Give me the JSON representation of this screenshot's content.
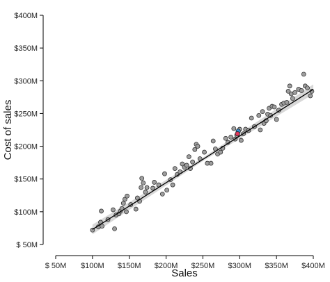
{
  "chart_data": {
    "type": "scatter",
    "xlabel": "Sales",
    "ylabel": "Cost of sales",
    "xlim": [
      50,
      400
    ],
    "ylim": [
      50,
      400
    ],
    "x_ticks": [
      {
        "value": 50,
        "label": "$ 50M"
      },
      {
        "value": 100,
        "label": "$100M"
      },
      {
        "value": 150,
        "label": "$150M"
      },
      {
        "value": 200,
        "label": "$200M"
      },
      {
        "value": 250,
        "label": "$250M"
      },
      {
        "value": 300,
        "label": "$300M"
      },
      {
        "value": 350,
        "label": "$350M"
      },
      {
        "value": 400,
        "label": "$400M"
      }
    ],
    "y_ticks": [
      {
        "value": 50,
        "label": "$ 50M"
      },
      {
        "value": 100,
        "label": "$100M"
      },
      {
        "value": 150,
        "label": "$150M"
      },
      {
        "value": 200,
        "label": "$200M"
      },
      {
        "value": 250,
        "label": "$250M"
      },
      {
        "value": 300,
        "label": "$300M"
      },
      {
        "value": 350,
        "label": "$350M"
      },
      {
        "value": 400,
        "label": "$400M"
      }
    ],
    "grid": false,
    "trend_line": {
      "x": [
        100,
        400
      ],
      "y": [
        73,
        287
      ],
      "confidence_band": true
    },
    "points": [
      {
        "x": 100,
        "y": 72
      },
      {
        "x": 108,
        "y": 77
      },
      {
        "x": 111,
        "y": 84
      },
      {
        "x": 113,
        "y": 78
      },
      {
        "x": 112,
        "y": 101
      },
      {
        "x": 121,
        "y": 88
      },
      {
        "x": 128,
        "y": 103
      },
      {
        "x": 130,
        "y": 74
      },
      {
        "x": 132,
        "y": 95
      },
      {
        "x": 136,
        "y": 97
      },
      {
        "x": 138,
        "y": 101
      },
      {
        "x": 140,
        "y": 105
      },
      {
        "x": 142,
        "y": 113
      },
      {
        "x": 144,
        "y": 119
      },
      {
        "x": 146,
        "y": 100
      },
      {
        "x": 147,
        "y": 124
      },
      {
        "x": 152,
        "y": 111
      },
      {
        "x": 159,
        "y": 104
      },
      {
        "x": 161,
        "y": 121
      },
      {
        "x": 164,
        "y": 116
      },
      {
        "x": 166,
        "y": 137
      },
      {
        "x": 167,
        "y": 151
      },
      {
        "x": 169,
        "y": 144
      },
      {
        "x": 172,
        "y": 130
      },
      {
        "x": 174,
        "y": 137
      },
      {
        "x": 182,
        "y": 136
      },
      {
        "x": 184,
        "y": 145
      },
      {
        "x": 190,
        "y": 141
      },
      {
        "x": 195,
        "y": 127
      },
      {
        "x": 198,
        "y": 158
      },
      {
        "x": 201,
        "y": 133
      },
      {
        "x": 206,
        "y": 149
      },
      {
        "x": 209,
        "y": 141
      },
      {
        "x": 212,
        "y": 166
      },
      {
        "x": 215,
        "y": 157
      },
      {
        "x": 219,
        "y": 161
      },
      {
        "x": 222,
        "y": 173
      },
      {
        "x": 225,
        "y": 168
      },
      {
        "x": 228,
        "y": 171
      },
      {
        "x": 231,
        "y": 184
      },
      {
        "x": 233,
        "y": 166
      },
      {
        "x": 236,
        "y": 176
      },
      {
        "x": 239,
        "y": 195
      },
      {
        "x": 241,
        "y": 203
      },
      {
        "x": 243,
        "y": 200
      },
      {
        "x": 246,
        "y": 181
      },
      {
        "x": 252,
        "y": 191
      },
      {
        "x": 256,
        "y": 174
      },
      {
        "x": 261,
        "y": 174
      },
      {
        "x": 264,
        "y": 208
      },
      {
        "x": 267,
        "y": 196
      },
      {
        "x": 270,
        "y": 188
      },
      {
        "x": 274,
        "y": 191
      },
      {
        "x": 277,
        "y": 197
      },
      {
        "x": 281,
        "y": 212
      },
      {
        "x": 284,
        "y": 206
      },
      {
        "x": 288,
        "y": 214
      },
      {
        "x": 292,
        "y": 227
      },
      {
        "x": 294,
        "y": 211
      },
      {
        "x": 296,
        "y": 217
      },
      {
        "x": 300,
        "y": 226
      },
      {
        "x": 302,
        "y": 209
      },
      {
        "x": 305,
        "y": 219
      },
      {
        "x": 308,
        "y": 226
      },
      {
        "x": 312,
        "y": 224
      },
      {
        "x": 316,
        "y": 243
      },
      {
        "x": 320,
        "y": 230
      },
      {
        "x": 326,
        "y": 247
      },
      {
        "x": 328,
        "y": 225
      },
      {
        "x": 331,
        "y": 253
      },
      {
        "x": 333,
        "y": 235
      },
      {
        "x": 336,
        "y": 239
      },
      {
        "x": 338,
        "y": 249
      },
      {
        "x": 340,
        "y": 258
      },
      {
        "x": 342,
        "y": 247
      },
      {
        "x": 344,
        "y": 261
      },
      {
        "x": 347,
        "y": 260
      },
      {
        "x": 350,
        "y": 241
      },
      {
        "x": 353,
        "y": 255
      },
      {
        "x": 357,
        "y": 264
      },
      {
        "x": 360,
        "y": 266
      },
      {
        "x": 364,
        "y": 267
      },
      {
        "x": 366,
        "y": 284
      },
      {
        "x": 368,
        "y": 292
      },
      {
        "x": 370,
        "y": 280
      },
      {
        "x": 372,
        "y": 273
      },
      {
        "x": 375,
        "y": 282
      },
      {
        "x": 380,
        "y": 287
      },
      {
        "x": 384,
        "y": 285
      },
      {
        "x": 387,
        "y": 310
      },
      {
        "x": 389,
        "y": 292
      },
      {
        "x": 392,
        "y": 289
      },
      {
        "x": 396,
        "y": 277
      },
      {
        "x": 398,
        "y": 284
      }
    ],
    "highlights": [
      {
        "x": 298,
        "y": 223,
        "color": "#2f8fd8"
      },
      {
        "x": 297,
        "y": 219,
        "color": "#e0365a"
      }
    ],
    "colors": {
      "point_fill": "#9e9e9e",
      "point_stroke": "#333333",
      "line": "#000000",
      "band": "#d4d4d4"
    }
  }
}
